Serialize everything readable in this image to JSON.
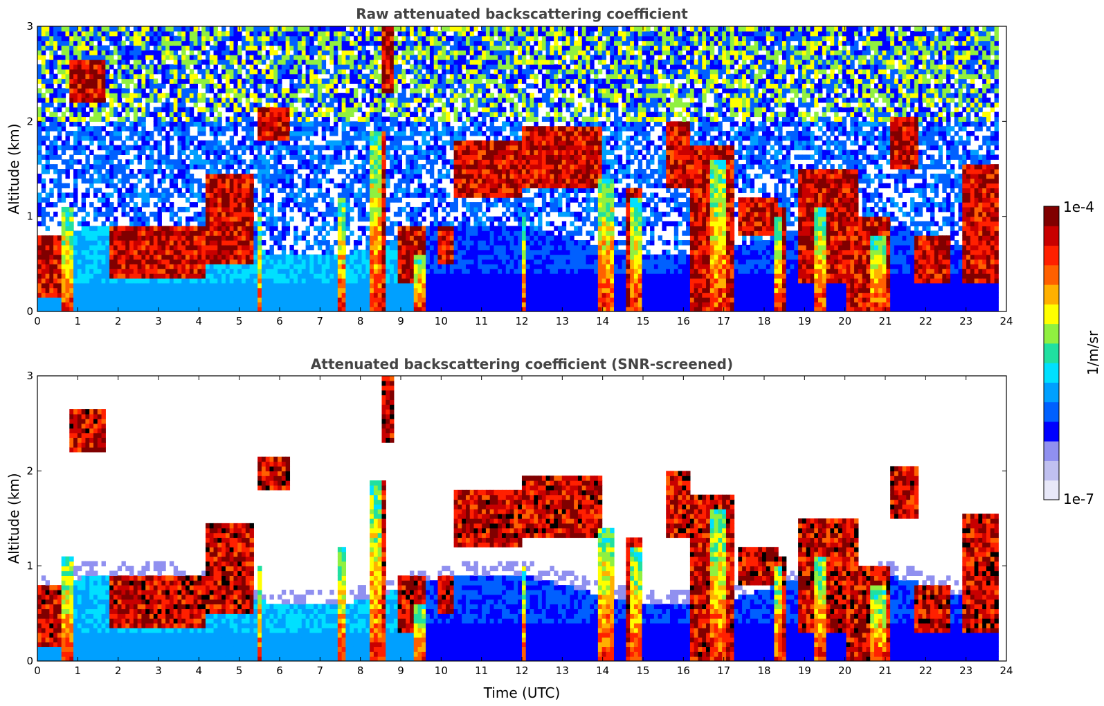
{
  "chart_data": [
    {
      "type": "heatmap",
      "title": "Raw attenuated backscattering coefficient",
      "xlabel": "",
      "ylabel": "Altitude (km)",
      "xlim": [
        0,
        24
      ],
      "ylim": [
        0,
        3
      ],
      "xticks": [
        "0",
        "1",
        "2",
        "3",
        "4",
        "5",
        "6",
        "7",
        "8",
        "9",
        "10",
        "11",
        "12",
        "13",
        "14",
        "15",
        "16",
        "17",
        "18",
        "19",
        "20",
        "21",
        "22",
        "23",
        "24"
      ],
      "yticks": [
        "0",
        "1",
        "2",
        "3"
      ],
      "screened": false,
      "data_end_hour": 23.8
    },
    {
      "type": "heatmap",
      "title": "Attenuated backscattering coefficient (SNR-screened)",
      "xlabel": "Time (UTC)",
      "ylabel": "Altitude (km)",
      "xlim": [
        0,
        24
      ],
      "ylim": [
        0,
        3
      ],
      "xticks": [
        "0",
        "1",
        "2",
        "3",
        "4",
        "5",
        "6",
        "7",
        "8",
        "9",
        "10",
        "11",
        "12",
        "13",
        "14",
        "15",
        "16",
        "17",
        "18",
        "19",
        "20",
        "21",
        "22",
        "23",
        "24"
      ],
      "yticks": [
        "0",
        "1",
        "2",
        "3"
      ],
      "screened": true,
      "data_end_hour": 23.8
    }
  ],
  "colorbar": {
    "label": "1/m/sr",
    "max_label": "1e-4",
    "min_label": "1e-7",
    "colors": [
      "#e8e8f8",
      "#c0c0f0",
      "#9090f0",
      "#0000ff",
      "#0060ff",
      "#00a0ff",
      "#00e0ff",
      "#20e0a0",
      "#90f040",
      "#ffff00",
      "#ffb000",
      "#ff6000",
      "#ff2000",
      "#c80000",
      "#800000"
    ]
  },
  "clouds": [
    {
      "t0": 0.0,
      "t1": 0.9,
      "z0": 0.15,
      "z1": 0.8
    },
    {
      "t0": 0.75,
      "t1": 1.7,
      "z0": 2.2,
      "z1": 2.65
    },
    {
      "t0": 1.8,
      "t1": 4.2,
      "z0": 0.35,
      "z1": 0.9
    },
    {
      "t0": 4.2,
      "t1": 5.4,
      "z0": 0.5,
      "z1": 1.45
    },
    {
      "t0": 5.5,
      "t1": 6.2,
      "z0": 1.8,
      "z1": 2.15
    },
    {
      "t0": 8.2,
      "t1": 8.6,
      "z0": 0.0,
      "z1": 1.9
    },
    {
      "t0": 8.5,
      "t1": 8.85,
      "z0": 2.3,
      "z1": 3.0
    },
    {
      "t0": 8.9,
      "t1": 9.6,
      "z0": 0.3,
      "z1": 0.9
    },
    {
      "t0": 9.9,
      "t1": 10.3,
      "z0": 0.5,
      "z1": 0.9
    },
    {
      "t0": 10.3,
      "t1": 12.0,
      "z0": 1.2,
      "z1": 1.8
    },
    {
      "t0": 12.0,
      "t1": 14.0,
      "z0": 1.3,
      "z1": 1.95
    },
    {
      "t0": 13.9,
      "t1": 14.3,
      "z0": 0.0,
      "z1": 1.4
    },
    {
      "t0": 14.6,
      "t1": 15.0,
      "z0": 0.0,
      "z1": 1.3
    },
    {
      "t0": 15.6,
      "t1": 16.2,
      "z0": 1.3,
      "z1": 2.0
    },
    {
      "t0": 16.2,
      "t1": 17.3,
      "z0": 0.0,
      "z1": 1.75
    },
    {
      "t0": 17.4,
      "t1": 18.3,
      "z0": 0.8,
      "z1": 1.2
    },
    {
      "t0": 18.2,
      "t1": 18.5,
      "z0": 0.0,
      "z1": 1.1
    },
    {
      "t0": 18.8,
      "t1": 20.3,
      "z0": 0.3,
      "z1": 1.5
    },
    {
      "t0": 20.0,
      "t1": 21.1,
      "z0": 0.0,
      "z1": 1.0
    },
    {
      "t0": 21.1,
      "t1": 21.8,
      "z0": 1.5,
      "z1": 2.05
    },
    {
      "t0": 21.7,
      "t1": 22.6,
      "z0": 0.3,
      "z1": 0.8
    },
    {
      "t0": 22.9,
      "t1": 23.8,
      "z0": 0.3,
      "z1": 1.55
    }
  ],
  "columns": [
    {
      "t0": 0.55,
      "t1": 0.85,
      "z1": 1.1
    },
    {
      "t0": 5.45,
      "t1": 5.6,
      "z1": 1.0
    },
    {
      "t0": 7.4,
      "t1": 7.6,
      "z1": 1.2
    },
    {
      "t0": 8.2,
      "t1": 8.55,
      "z1": 1.9
    },
    {
      "t0": 9.35,
      "t1": 9.6,
      "z1": 0.6
    },
    {
      "t0": 12.0,
      "t1": 12.1,
      "z1": 1.0
    },
    {
      "t0": 13.9,
      "t1": 14.25,
      "z1": 1.4
    },
    {
      "t0": 14.7,
      "t1": 15.0,
      "z1": 1.2
    },
    {
      "t0": 16.7,
      "t1": 17.1,
      "z1": 1.6
    },
    {
      "t0": 18.25,
      "t1": 18.45,
      "z1": 1.0
    },
    {
      "t0": 19.2,
      "t1": 19.5,
      "z1": 1.1
    },
    {
      "t0": 20.6,
      "t1": 21.05,
      "z1": 0.8
    }
  ]
}
